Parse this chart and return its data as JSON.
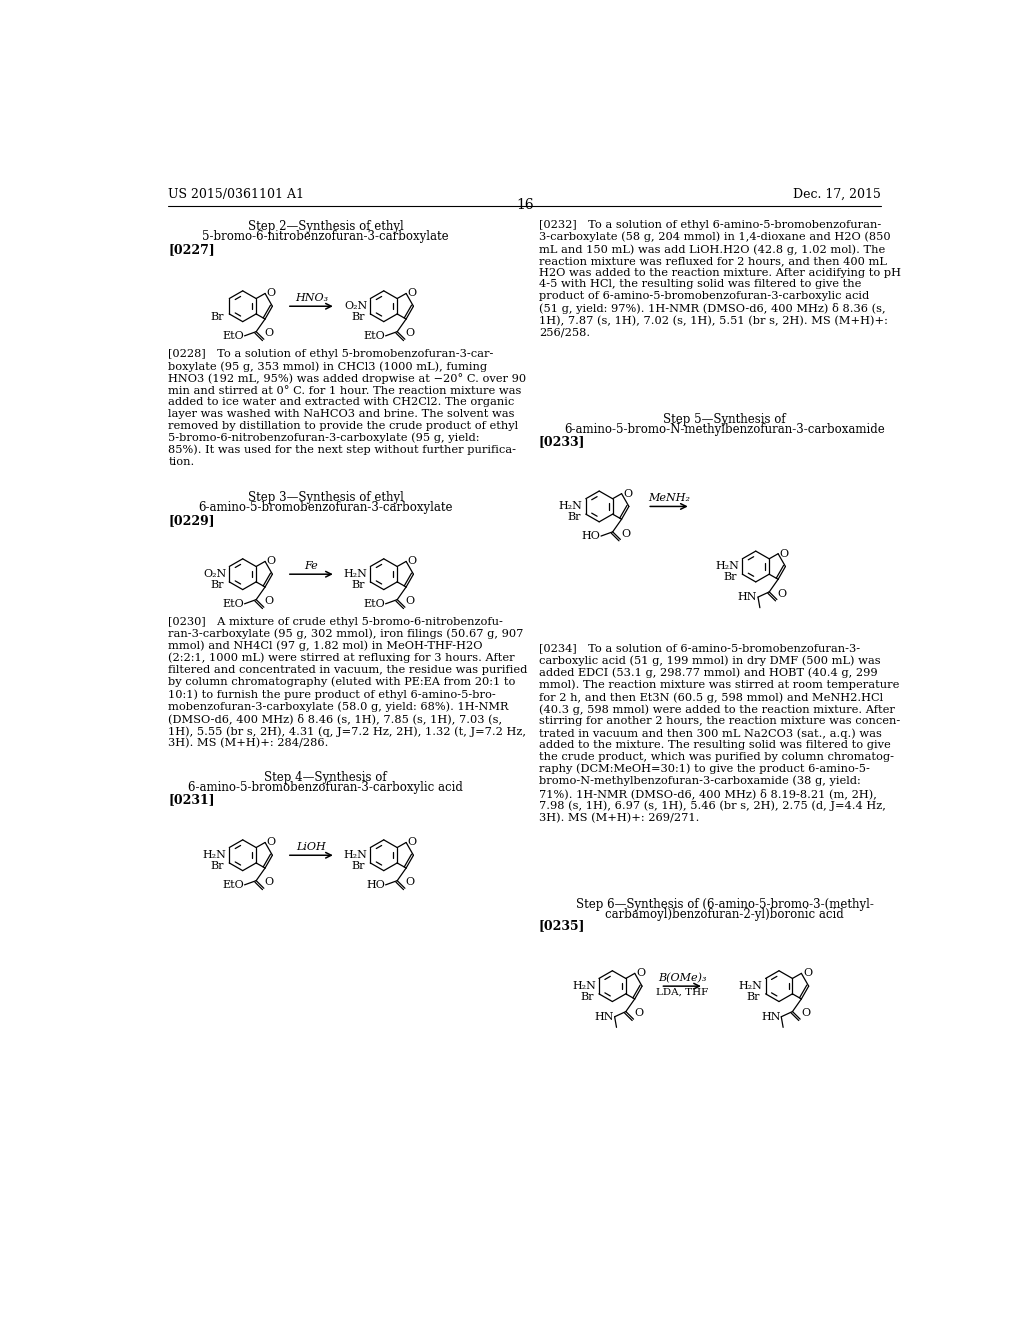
{
  "header_left": "US 2015/0361101 A1",
  "header_right": "Dec. 17, 2015",
  "page_num": "16",
  "step2_line1": "Step 2—Synthesis of ethyl",
  "step2_line2": "5-bromo-6-nitrobenzofuran-3-carboxylate",
  "step3_line1": "Step 3—Synthesis of ethyl",
  "step3_line2": "6-amino-5-bromobenzofuran-3-carboxylate",
  "step4_line1": "Step 4—Synthesis of",
  "step4_line2": "6-amino-5-bromobenzofuran-3-carboxylic acid",
  "step5_line1": "Step 5—Synthesis of",
  "step5_line2": "6-amino-5-bromo-N-methylbenzofuran-3-carboxamide",
  "step6_line1": "Step 6—Synthesis of (6-amino-5-bromo-3-(methyl-",
  "step6_line2": "carbamoyl)benzofuran-2-yl)boronic acid",
  "p0227": "[0227]",
  "p0229": "[0229]",
  "p0231": "[0231]",
  "p0233": "[0233]",
  "p0235": "[0235]",
  "t0228": "[0228] To a solution of ethyl 5-bromobenzofuran-3-car-\nboxylate (95 g, 353 mmol) in CHCl3 (1000 mL), fuming\nHNO3 (192 mL, 95%) was added dropwise at −20° C. over 90\nmin and stirred at 0° C. for 1 hour. The reaction mixture was\nadded to ice water and extracted with CH2Cl2. The organic\nlayer was washed with NaHCO3 and brine. The solvent was\nremoved by distillation to provide the crude product of ethyl\n5-bromo-6-nitrobenzofuran-3-carboxylate (95 g, yield:\n85%). It was used for the next step without further purifica-\ntion.",
  "t0230": "[0230] A mixture of crude ethyl 5-bromo-6-nitrobenzofu-\nran-3-carboxylate (95 g, 302 mmol), iron filings (50.67 g, 907\nmmol) and NH4Cl (97 g, 1.82 mol) in MeOH-THF-H2O\n(2:2:1, 1000 mL) were stirred at refluxing for 3 hours. After\nfiltered and concentrated in vacuum, the residue was purified\nby column chromatography (eluted with PE:EA from 20:1 to\n10:1) to furnish the pure product of ethyl 6-amino-5-bro-\nmobenzofuran-3-carboxylate (58.0 g, yield: 68%). 1H-NMR\n(DMSO-d6, 400 MHz) δ 8.46 (s, 1H), 7.85 (s, 1H), 7.03 (s,\n1H), 5.55 (br s, 2H), 4.31 (q, J=7.2 Hz, 2H), 1.32 (t, J=7.2 Hz,\n3H). MS (M+H)+: 284/286.",
  "t0232": "[0232] To a solution of ethyl 6-amino-5-bromobenzofuran-\n3-carboxylate (58 g, 204 mmol) in 1,4-dioxane and H2O (850\nmL and 150 mL) was add LiOH.H2O (42.8 g, 1.02 mol). The\nreaction mixture was refluxed for 2 hours, and then 400 mL\nH2O was added to the reaction mixture. After acidifying to pH\n4-5 with HCl, the resulting solid was filtered to give the\nproduct of 6-amino-5-bromobenzofuran-3-carboxylic acid\n(51 g, yield: 97%). 1H-NMR (DMSO-d6, 400 MHz) δ 8.36 (s,\n1H), 7.87 (s, 1H), 7.02 (s, 1H), 5.51 (br s, 2H). MS (M+H)+:\n256/258.",
  "t0234": "[0234] To a solution of 6-amino-5-bromobenzofuran-3-\ncarboxylic acid (51 g, 199 mmol) in dry DMF (500 mL) was\nadded EDCI (53.1 g, 298.77 mmol) and HOBT (40.4 g, 299\nmmol). The reaction mixture was stirred at room temperature\nfor 2 h, and then Et3N (60.5 g, 598 mmol) and MeNH2.HCl\n(40.3 g, 598 mmol) were added to the reaction mixture. After\nstirring for another 2 hours, the reaction mixture was concen-\ntrated in vacuum and then 300 mL Na2CO3 (sat., a.q.) was\nadded to the mixture. The resulting solid was filtered to give\nthe crude product, which was purified by column chromatog-\nraphy (DCM:MeOH=30:1) to give the product 6-amino-5-\nbromo-N-methylbenzofuran-3-carboxamide (38 g, yield:\n71%). 1H-NMR (DMSO-d6, 400 MHz) δ 8.19-8.21 (m, 2H),\n7.98 (s, 1H), 6.97 (s, 1H), 5.46 (br s, 2H), 2.75 (d, J=4.4 Hz,\n3H). MS (M+H)+: 269/271."
}
